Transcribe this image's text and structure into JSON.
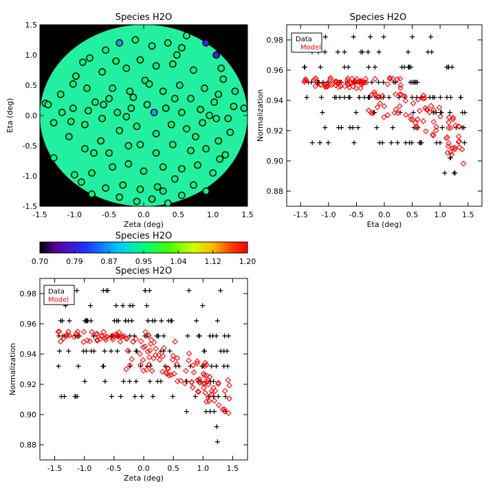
{
  "chart_data": [
    {
      "id": "map",
      "type": "scatter",
      "title": "Species H2O",
      "xlabel": "Zeta (deg)",
      "ylabel": "Eta (deg)",
      "xlim": [
        -1.5,
        1.5
      ],
      "ylim": [
        -1.5,
        1.5
      ],
      "xticks": [
        "-1.5",
        "-1.0",
        "-0.5",
        "0.0",
        "0.5",
        "1.0",
        "1.5"
      ],
      "yticks": [
        "-1.5",
        "-1.0",
        "-0.5",
        "0.0",
        "0.5",
        "1.0",
        "1.5"
      ],
      "background_value": 0.95,
      "points": [
        [
          -0.55,
          1.08
        ],
        [
          -0.35,
          1.2
        ],
        [
          -0.12,
          1.25
        ],
        [
          0.12,
          1.15
        ],
        [
          0.35,
          1.2
        ],
        [
          0.55,
          1.12
        ],
        [
          0.62,
          1.32
        ],
        [
          0.48,
          1.0
        ],
        [
          0.9,
          1.2
        ],
        [
          1.05,
          1.0
        ],
        [
          -0.88,
          0.88
        ],
        [
          -0.78,
          0.95
        ],
        [
          -0.6,
          0.72
        ],
        [
          -0.4,
          0.9
        ],
        [
          -0.25,
          0.78
        ],
        [
          -0.05,
          0.92
        ],
        [
          0.18,
          0.82
        ],
        [
          0.42,
          0.85
        ],
        [
          0.72,
          0.75
        ],
        [
          1.12,
          0.78
        ],
        [
          1.15,
          0.6
        ],
        [
          -1.2,
          0.35
        ],
        [
          -1.02,
          0.52
        ],
        [
          -0.82,
          0.45
        ],
        [
          -0.7,
          0.22
        ],
        [
          -0.45,
          0.45
        ],
        [
          -0.2,
          0.4
        ],
        [
          0.02,
          0.58
        ],
        [
          0.08,
          0.52
        ],
        [
          0.28,
          0.4
        ],
        [
          0.52,
          0.5
        ],
        [
          0.88,
          0.45
        ],
        [
          1.08,
          0.35
        ],
        [
          1.32,
          0.4
        ],
        [
          1.3,
          0.15
        ],
        [
          -1.42,
          0.2
        ],
        [
          -1.38,
          0.18
        ],
        [
          -1.18,
          0.05
        ],
        [
          -1.02,
          0.12
        ],
        [
          -0.8,
          0.08
        ],
        [
          -0.58,
          0.18
        ],
        [
          -0.38,
          0.05
        ],
        [
          -0.18,
          0.12
        ],
        [
          0.05,
          0.18
        ],
        [
          0.32,
          0.12
        ],
        [
          0.55,
          0.05
        ],
        [
          0.82,
          0.1
        ],
        [
          1.02,
          0.22
        ],
        [
          1.22,
          -0.05
        ],
        [
          1.45,
          0.12
        ],
        [
          -1.3,
          -0.12
        ],
        [
          -1.05,
          -0.1
        ],
        [
          -0.85,
          -0.15
        ],
        [
          -0.6,
          -0.05
        ],
        [
          -0.35,
          -0.25
        ],
        [
          -0.1,
          -0.18
        ],
        [
          0.18,
          -0.3
        ],
        [
          0.4,
          -0.15
        ],
        [
          0.62,
          -0.22
        ],
        [
          0.85,
          -0.12
        ],
        [
          1.05,
          -0.05
        ],
        [
          1.25,
          -0.28
        ],
        [
          -1.3,
          -0.7
        ],
        [
          -1.08,
          -0.35
        ],
        [
          -0.85,
          -0.55
        ],
        [
          -0.62,
          -0.42
        ],
        [
          -0.5,
          -0.62
        ],
        [
          -0.22,
          -0.5
        ],
        [
          -0.05,
          -0.48
        ],
        [
          0.18,
          -0.62
        ],
        [
          0.42,
          -0.48
        ],
        [
          0.68,
          -0.58
        ],
        [
          0.9,
          -0.55
        ],
        [
          1.08,
          -0.42
        ],
        [
          1.18,
          -0.65
        ],
        [
          -1.0,
          -0.98
        ],
        [
          -0.75,
          -0.95
        ],
        [
          -0.45,
          -0.85
        ],
        [
          -0.22,
          -0.8
        ],
        [
          0.0,
          -0.92
        ],
        [
          0.28,
          -0.85
        ],
        [
          0.55,
          -0.88
        ],
        [
          0.78,
          -0.82
        ],
        [
          1.0,
          -0.95
        ],
        [
          1.1,
          -0.72
        ],
        [
          -0.9,
          -1.1
        ],
        [
          -0.55,
          -1.2
        ],
        [
          -0.3,
          -1.15
        ],
        [
          -0.05,
          -1.22
        ],
        [
          0.2,
          -1.18
        ],
        [
          0.45,
          -1.05
        ],
        [
          0.72,
          -1.15
        ],
        [
          0.9,
          -1.25
        ],
        [
          -0.75,
          -1.3
        ],
        [
          -0.35,
          -1.35
        ],
        [
          -0.1,
          -1.42
        ],
        [
          0.12,
          -1.38
        ],
        [
          0.35,
          -1.45
        ],
        [
          0.55,
          -1.32
        ],
        [
          0.28,
          -1.25
        ],
        [
          -0.98,
          0.65
        ],
        [
          -0.5,
          0.28
        ],
        [
          0.68,
          0.28
        ],
        [
          -0.25,
          -0.02
        ],
        [
          0.15,
          0.05
        ],
        [
          -0.72,
          -0.62
        ],
        [
          0.75,
          -0.35
        ],
        [
          0.95,
          0.0
        ],
        [
          -0.15,
          0.3
        ],
        [
          0.45,
          0.28
        ]
      ],
      "point_values": {
        "0.80": [
          8,
          9
        ],
        "0.87": [
          1,
          104
        ],
        "0.93": [
          30,
          33,
          56,
          63
        ]
      }
    },
    {
      "id": "colorbar",
      "type": "heatmap",
      "title": "Species H2O",
      "range": [
        0.7,
        1.2
      ],
      "tick_labels": [
        "0.70",
        "0.79",
        "0.87",
        "0.95",
        "1.04",
        "1.12",
        "1.20"
      ]
    },
    {
      "id": "eta_norm",
      "type": "scatter",
      "title": "Species H2O",
      "xlabel": "Eta (deg)",
      "ylabel": "Normalization",
      "xlim": [
        -1.75,
        1.75
      ],
      "ylim": [
        0.87,
        0.99
      ],
      "xticks": [
        "-1.5",
        "-1.0",
        "-0.5",
        "0.0",
        "0.5",
        "1.0",
        "1.5"
      ],
      "yticks": [
        "0.88",
        "0.90",
        "0.92",
        "0.94",
        "0.96",
        "0.98"
      ],
      "legend": {
        "position": "top-left",
        "entries": [
          "Data",
          "Model"
        ]
      }
    },
    {
      "id": "zeta_norm",
      "type": "scatter",
      "title": "Species H2O",
      "xlabel": "Zeta (deg)",
      "ylabel": "Normalization",
      "xlim": [
        -1.75,
        1.75
      ],
      "ylim": [
        0.87,
        0.99
      ],
      "xticks": [
        "-1.5",
        "-1.0",
        "-0.5",
        "0.0",
        "0.5",
        "1.0",
        "1.5"
      ],
      "yticks": [
        "0.88",
        "0.90",
        "0.92",
        "0.94",
        "0.96",
        "0.98"
      ],
      "legend": {
        "position": "top-left",
        "entries": [
          "Data",
          "Model"
        ]
      }
    }
  ]
}
